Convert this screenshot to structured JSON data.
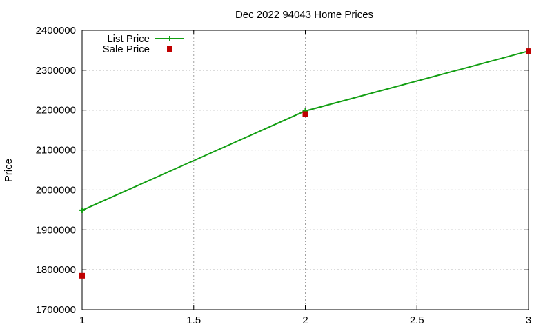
{
  "chart_data": {
    "type": "line",
    "title": "Dec 2022 94043 Home Prices",
    "xlabel": "",
    "ylabel": "Price",
    "xlim": [
      1,
      3
    ],
    "ylim": [
      1700000,
      2400000
    ],
    "x_ticks": [
      "1",
      "1.5",
      "2",
      "2.5",
      "3"
    ],
    "y_ticks": [
      "1700000",
      "1800000",
      "1900000",
      "2000000",
      "2100000",
      "2200000",
      "2300000",
      "2400000"
    ],
    "grid": true,
    "legend_position": "top-left",
    "series": [
      {
        "name": "List Price",
        "style": "line-with-plus-markers",
        "color": "#119e11",
        "x": [
          1,
          2,
          3
        ],
        "y": [
          1949000,
          2198000,
          2348000
        ]
      },
      {
        "name": "Sale Price",
        "style": "square-markers",
        "color": "#c00000",
        "x": [
          1,
          2,
          3
        ],
        "y": [
          1785000,
          2190000,
          2348000
        ]
      }
    ]
  }
}
